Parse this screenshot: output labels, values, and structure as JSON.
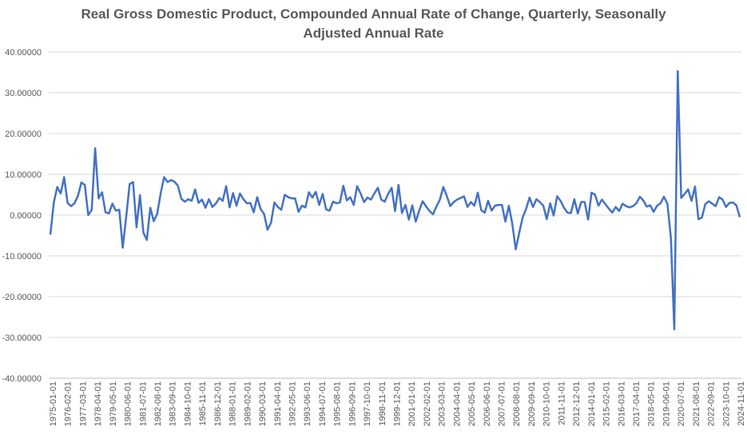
{
  "chart_data": {
    "type": "line",
    "title_line1": "Real Gross Domestic Product, Compounded Annual Rate of Change, Quarterly, Seasonally",
    "title_line2": "Adjusted Annual Rate",
    "xlabel": "",
    "ylabel": "",
    "ylim": [
      -40,
      40
    ],
    "y_ticks": [
      "-40.00000",
      "-30.00000",
      "-20.00000",
      "-10.00000",
      "0.00000",
      "10.00000",
      "20.00000",
      "30.00000",
      "40.00000"
    ],
    "y_tick_values": [
      -40,
      -30,
      -20,
      -10,
      0,
      10,
      20,
      30,
      40
    ],
    "x_tick_labels": [
      "1975-01-01",
      "1976-02-01",
      "1977-03-01",
      "1978-04-01",
      "1979-05-01",
      "1980-06-01",
      "1981-07-01",
      "1982-08-01",
      "1983-09-01",
      "1984-10-01",
      "1985-11-01",
      "1986-12-01",
      "1988-01-01",
      "1989-02-01",
      "1990-03-01",
      "1991-04-01",
      "1992-05-01",
      "1993-06-01",
      "1994-07-01",
      "1995-08-01",
      "1996-09-01",
      "1997-10-01",
      "1998-11-01",
      "1999-12-01",
      "2001-01-01",
      "2002-02-01",
      "2003-03-01",
      "2004-04-01",
      "2005-05-01",
      "2006-06-01",
      "2007-07-01",
      "2008-08-01",
      "2009-09-01",
      "2010-10-01",
      "2011-11-01",
      "2012-12-01",
      "2014-01-01",
      "2015-02-01",
      "2016-03-01",
      "2017-04-01",
      "2018-05-01",
      "2019-06-01",
      "2020-07-01",
      "2021-08-01",
      "2022-09-01",
      "2023-10-01",
      "2024-11-01"
    ],
    "grid": true,
    "legend": "none",
    "line_color": "#4472C4",
    "x_start": "1975-01-01",
    "x_frequency": "quarterly",
    "series": [
      {
        "values": [
          -4.8,
          3.0,
          6.9,
          5.3,
          9.3,
          3.0,
          2.2,
          2.9,
          4.7,
          8.0,
          7.4,
          0.0,
          1.3,
          16.4,
          4.1,
          5.6,
          0.7,
          0.4,
          2.8,
          1.1,
          1.3,
          -8.0,
          -0.5,
          7.6,
          8.1,
          -3.0,
          4.9,
          -4.3,
          -6.1,
          1.8,
          -1.5,
          0.3,
          5.3,
          9.3,
          8.1,
          8.6,
          8.2,
          7.2,
          4.0,
          3.3,
          3.9,
          3.5,
          6.3,
          3.0,
          3.8,
          1.8,
          3.9,
          2.0,
          2.8,
          4.2,
          3.5,
          7.1,
          1.9,
          5.4,
          2.3,
          5.3,
          3.9,
          2.9,
          3.0,
          0.7,
          4.4,
          1.5,
          0.3,
          -3.6,
          -1.9,
          3.1,
          2.0,
          1.3,
          5.0,
          4.4,
          4.1,
          4.1,
          0.8,
          2.3,
          1.9,
          5.6,
          4.3,
          5.7,
          2.5,
          5.2,
          1.4,
          1.1,
          3.3,
          2.9,
          3.1,
          7.2,
          3.6,
          4.4,
          2.5,
          7.1,
          5.3,
          3.2,
          4.3,
          3.8,
          5.3,
          6.7,
          3.8,
          3.3,
          5.2,
          6.7,
          1.0,
          7.4,
          0.5,
          2.5,
          -1.1,
          2.4,
          -1.6,
          1.1,
          3.4,
          2.1,
          1.0,
          0.2,
          2.1,
          3.8,
          6.9,
          4.7,
          2.2,
          3.2,
          3.8,
          4.2,
          4.6,
          2.0,
          3.2,
          2.3,
          5.5,
          1.2,
          0.6,
          3.5,
          1.1,
          2.3,
          2.5,
          2.5,
          -1.6,
          2.3,
          -2.1,
          -8.4,
          -4.4,
          -0.6,
          1.5,
          4.3,
          2.0,
          3.9,
          3.2,
          2.3,
          -1.0,
          2.9,
          -0.1,
          4.6,
          3.5,
          1.8,
          0.6,
          0.5,
          3.9,
          0.4,
          3.2,
          3.2,
          -1.1,
          5.5,
          5.0,
          2.3,
          3.8,
          2.7,
          1.6,
          0.6,
          2.0,
          1.0,
          2.8,
          2.2,
          1.9,
          2.2,
          2.9,
          4.5,
          3.6,
          2.1,
          2.4,
          0.8,
          2.3,
          2.9,
          4.5,
          2.8,
          -5.5,
          -28.0,
          35.3,
          4.2,
          5.2,
          6.3,
          3.5,
          7.0,
          -1.0,
          -0.6,
          2.7,
          3.4,
          2.8,
          2.2,
          4.4,
          3.8,
          2.0,
          3.0,
          3.1,
          2.4,
          -0.5
        ]
      }
    ]
  }
}
